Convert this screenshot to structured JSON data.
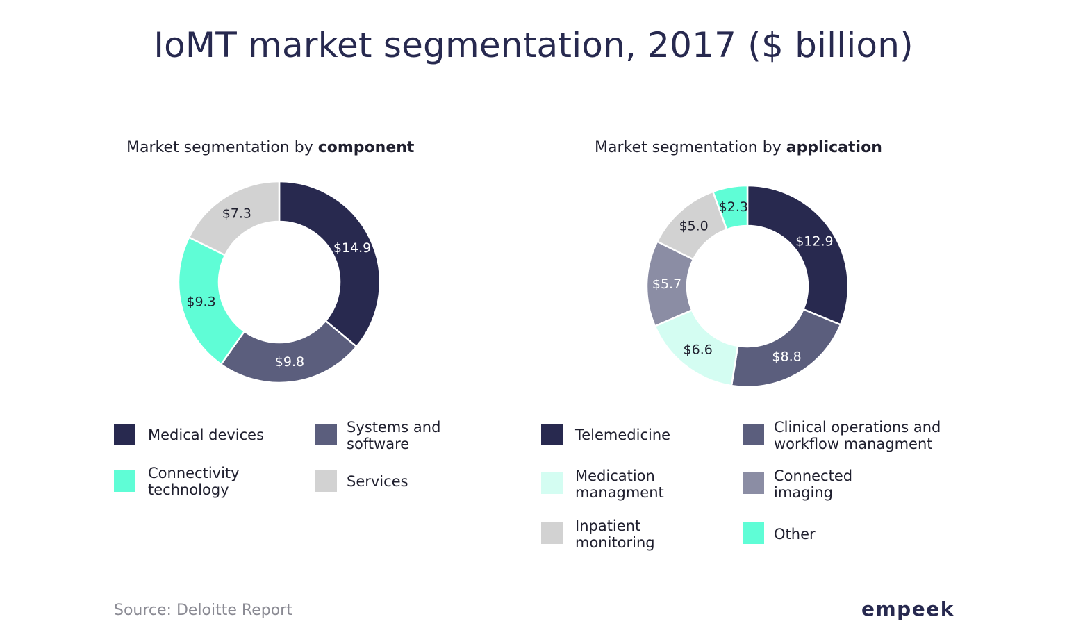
{
  "title": "IoMT market segmentation, 2017 ($ billion)",
  "source": "Source: Deloitte Report",
  "logo_text": "empeek",
  "chart_data": [
    {
      "type": "pie",
      "donut": true,
      "subtitle_prefix": "Market segmentation by ",
      "subtitle_bold": "component",
      "unit": "$ billion",
      "slices": [
        {
          "name": "Medical devices",
          "value": 14.9,
          "label": "$14.9",
          "color": "#28294f",
          "text_color": "#ffffff"
        },
        {
          "name": "Systems and software",
          "value": 9.8,
          "label": "$9.8",
          "color": "#5b5e7d",
          "text_color": "#ffffff"
        },
        {
          "name": "Connectivity technology",
          "value": 9.3,
          "label": "$9.3",
          "color": "#5ffdd6",
          "text_color": "#1f1f2e"
        },
        {
          "name": "Services",
          "value": 7.3,
          "label": "$7.3",
          "color": "#d2d2d2",
          "text_color": "#1f1f2e"
        }
      ],
      "legend": [
        {
          "label": "Medical devices",
          "color": "#28294f"
        },
        {
          "label": "Systems and software",
          "color": "#5b5e7d"
        },
        {
          "label": "Connectivity technology",
          "color": "#5ffdd6"
        },
        {
          "label": "Services",
          "color": "#d2d2d2"
        }
      ]
    },
    {
      "type": "pie",
      "donut": true,
      "subtitle_prefix": "Market segmentation by ",
      "subtitle_bold": "application",
      "unit": "$ billion",
      "slices": [
        {
          "name": "Telemedicine",
          "value": 12.9,
          "label": "$12.9",
          "color": "#28294f",
          "text_color": "#ffffff"
        },
        {
          "name": "Clinical operations and workflow managment",
          "value": 8.8,
          "label": "$8.8",
          "color": "#5b5e7d",
          "text_color": "#ffffff"
        },
        {
          "name": "Medication managment",
          "value": 6.6,
          "label": "$6.6",
          "color": "#d4fdf2",
          "text_color": "#1f1f2e"
        },
        {
          "name": "Connected imaging",
          "value": 5.7,
          "label": "$5.7",
          "color": "#8b8da4",
          "text_color": "#ffffff"
        },
        {
          "name": "Inpatient monitoring",
          "value": 5.0,
          "label": "$5.0",
          "color": "#d2d2d2",
          "text_color": "#1f1f2e"
        },
        {
          "name": "Other",
          "value": 2.3,
          "label": "$2.3",
          "color": "#5ffdd6",
          "text_color": "#1f1f2e"
        }
      ],
      "legend": [
        {
          "label": "Telemedicine",
          "color": "#28294f"
        },
        {
          "label": "Clinical operations and workflow managment",
          "color": "#5b5e7d"
        },
        {
          "label": "Medication managment",
          "color": "#d4fdf2"
        },
        {
          "label": "Connected imaging",
          "color": "#8b8da4"
        },
        {
          "label": "Inpatient monitoring",
          "color": "#d2d2d2"
        },
        {
          "label": "Other",
          "color": "#5ffdd6"
        }
      ]
    }
  ]
}
